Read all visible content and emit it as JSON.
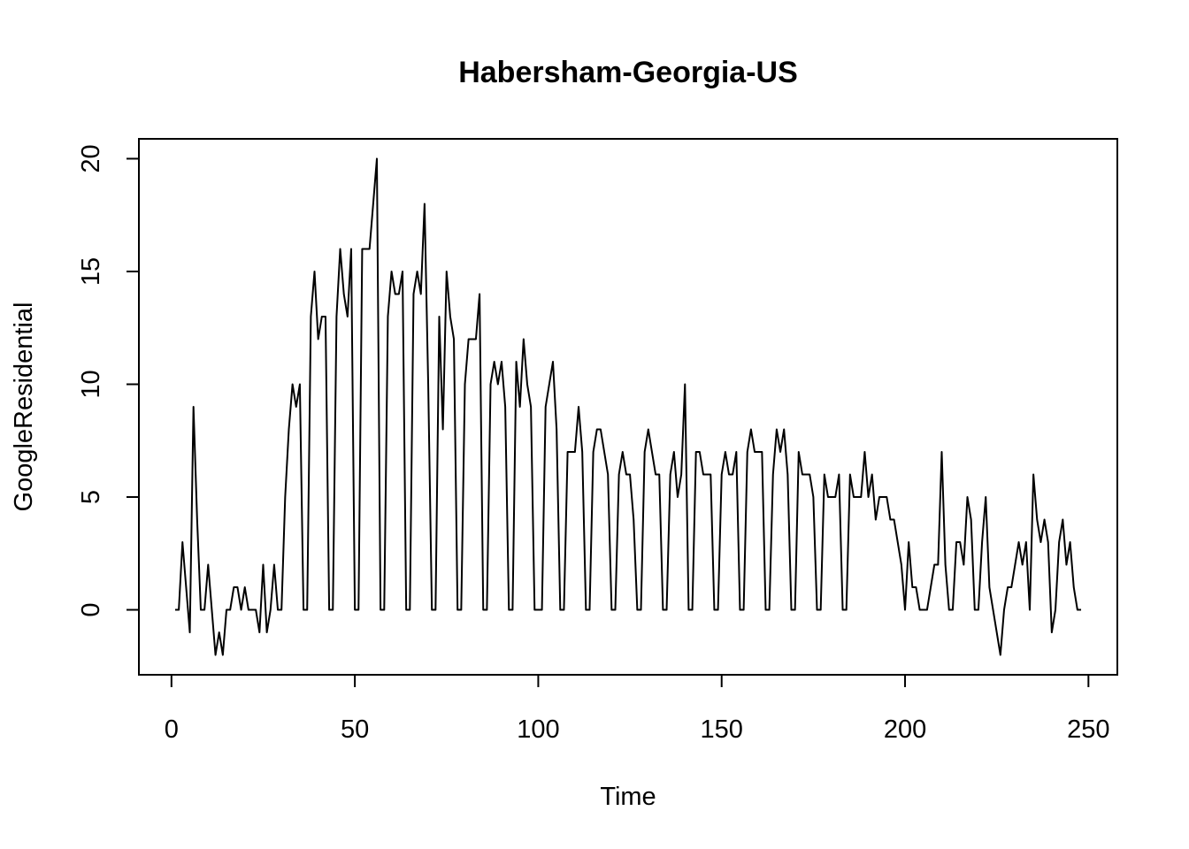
{
  "chart_data": {
    "type": "line",
    "title": "Habersham-Georgia-US",
    "xlabel": "Time",
    "ylabel": "GoogleResidential",
    "xlim": [
      1,
      248
    ],
    "ylim": [
      -2,
      20
    ],
    "xticks": [
      0,
      50,
      100,
      150,
      200,
      250
    ],
    "yticks": [
      0,
      5,
      10,
      15,
      20
    ],
    "grid": false,
    "line_color": "#000000",
    "series": [
      {
        "x_start": 1,
        "values": [
          0,
          0,
          3,
          1,
          -1,
          9,
          4,
          0,
          0,
          2,
          0,
          -2,
          -1,
          -2,
          0,
          0,
          1,
          1,
          0,
          1,
          0,
          0,
          0,
          -1,
          2,
          -1,
          0,
          2,
          0,
          0,
          5,
          8,
          10,
          9,
          10,
          0,
          0,
          13,
          15,
          12,
          13,
          13,
          0,
          0,
          13,
          16,
          14,
          13,
          16,
          0,
          0,
          16,
          16,
          16,
          18,
          20,
          0,
          0,
          13,
          15,
          14,
          14,
          15,
          0,
          0,
          14,
          15,
          14,
          18,
          10,
          0,
          0,
          13,
          8,
          15,
          13,
          12,
          0,
          0,
          10,
          12,
          12,
          12,
          14,
          0,
          0,
          10,
          11,
          10,
          11,
          9,
          0,
          0,
          11,
          9,
          12,
          10,
          9,
          0,
          0,
          0,
          9,
          10,
          11,
          8,
          0,
          0,
          7,
          7,
          7,
          9,
          7,
          0,
          0,
          7,
          8,
          8,
          7,
          6,
          0,
          0,
          6,
          7,
          6,
          6,
          4,
          0,
          0,
          7,
          8,
          7,
          6,
          6,
          0,
          0,
          6,
          7,
          5,
          6,
          10,
          0,
          0,
          7,
          7,
          6,
          6,
          6,
          0,
          0,
          6,
          7,
          6,
          6,
          7,
          0,
          0,
          7,
          8,
          7,
          7,
          7,
          0,
          0,
          6,
          8,
          7,
          8,
          6,
          0,
          0,
          7,
          6,
          6,
          6,
          5,
          0,
          0,
          6,
          5,
          5,
          5,
          6,
          0,
          0,
          6,
          5,
          5,
          5,
          7,
          5,
          6,
          4,
          5,
          5,
          5,
          4,
          4,
          3,
          2,
          0,
          3,
          1,
          1,
          0,
          0,
          0,
          1,
          2,
          2,
          7,
          2,
          0,
          0,
          3,
          3,
          2,
          5,
          4,
          0,
          0,
          3,
          5,
          1,
          0,
          -1,
          -2,
          0,
          1,
          1,
          2,
          3,
          2,
          3,
          0,
          6,
          4,
          3,
          4,
          3,
          -1,
          0,
          3,
          4,
          2,
          3,
          1,
          0,
          0
        ]
      }
    ]
  }
}
